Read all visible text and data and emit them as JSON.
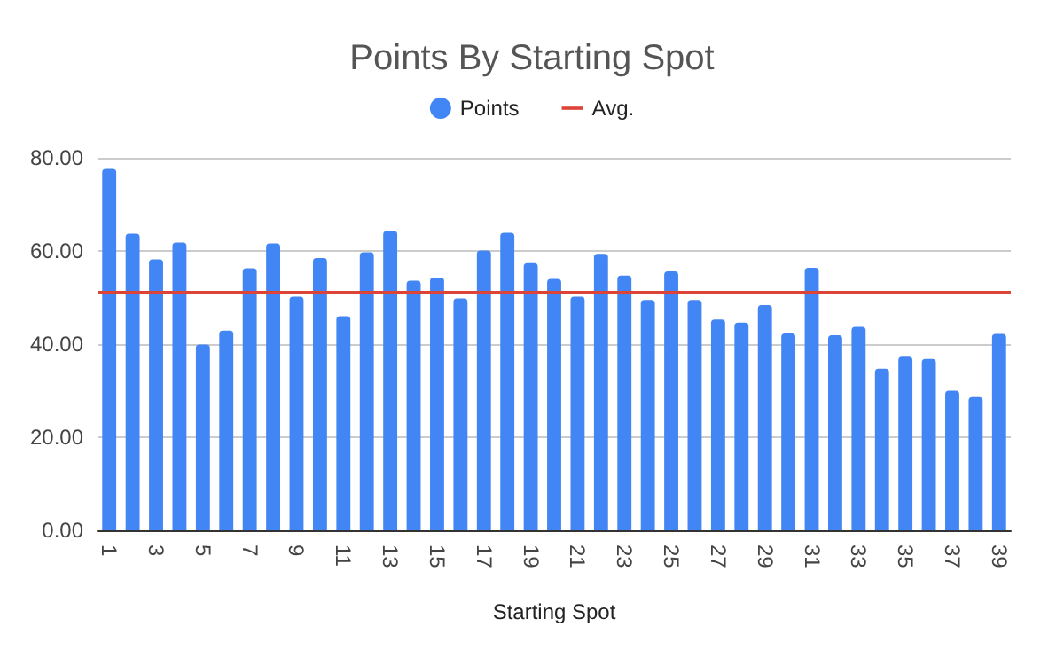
{
  "chart_data": {
    "type": "bar",
    "title": "Points By Starting Spot",
    "xlabel": "Starting Spot",
    "categories": [
      "1",
      null,
      "3",
      null,
      "5",
      null,
      "7",
      null,
      "9",
      null,
      "11",
      null,
      "13",
      null,
      "15",
      null,
      "17",
      null,
      "19",
      null,
      "21",
      null,
      "23",
      null,
      "25",
      null,
      "27",
      null,
      "29",
      null,
      "31",
      null,
      "33",
      null,
      "35",
      null,
      "37",
      null,
      "39"
    ],
    "series": [
      {
        "name": "Points",
        "color": "#4285f4",
        "values": [
          77.6,
          63.7,
          58.2,
          61.8,
          39.9,
          42.9,
          56.3,
          61.6,
          50.2,
          58.5,
          46.0,
          59.7,
          64.3,
          53.6,
          54.3,
          49.8,
          60.1,
          63.9,
          57.4,
          54.0,
          50.2,
          59.4,
          54.7,
          49.5,
          55.6,
          49.5,
          45.3,
          44.6,
          48.4,
          42.3,
          56.4,
          41.9,
          43.7,
          34.7,
          37.3,
          36.8,
          30.0,
          28.6,
          42.2
        ]
      }
    ],
    "ref_lines": [
      {
        "axis": "y",
        "value": 51.0,
        "label": "Avg.",
        "color": "#db4437"
      }
    ],
    "ylim": [
      0,
      80
    ],
    "yticks": [
      {
        "value": 0,
        "label": "0.00"
      },
      {
        "value": 20,
        "label": "20.00"
      },
      {
        "value": 40,
        "label": "40.00"
      },
      {
        "value": 60,
        "label": "60.00"
      },
      {
        "value": 80,
        "label": "80.00"
      }
    ],
    "grid": "y",
    "legend": "top"
  }
}
